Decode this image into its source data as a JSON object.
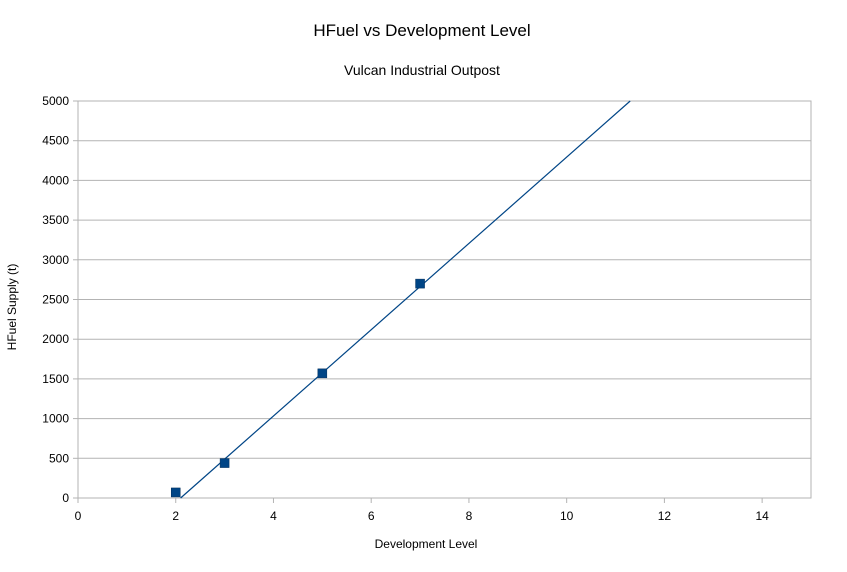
{
  "chart_data": {
    "type": "scatter",
    "title": "HFuel vs Development Level",
    "subtitle": "Vulcan Industrial Outpost",
    "xlabel": "Development Level",
    "ylabel": "HFuel Supply (t)",
    "xlim": [
      0,
      15
    ],
    "ylim": [
      0,
      5000
    ],
    "xticks": [
      0,
      2,
      4,
      6,
      8,
      10,
      12,
      14
    ],
    "yticks": [
      0,
      500,
      1000,
      1500,
      2000,
      2500,
      3000,
      3500,
      4000,
      4500,
      5000
    ],
    "grid": true,
    "legend": "none",
    "series": [
      {
        "x": [
          2,
          3,
          5,
          7
        ],
        "y": [
          70,
          440,
          1570,
          2700
        ],
        "color": "#004586",
        "marker": "square"
      }
    ],
    "trendline": {
      "type": "linear",
      "color": "#004586",
      "x": [
        2.1,
        11.3
      ],
      "y": [
        0,
        5000
      ]
    }
  }
}
